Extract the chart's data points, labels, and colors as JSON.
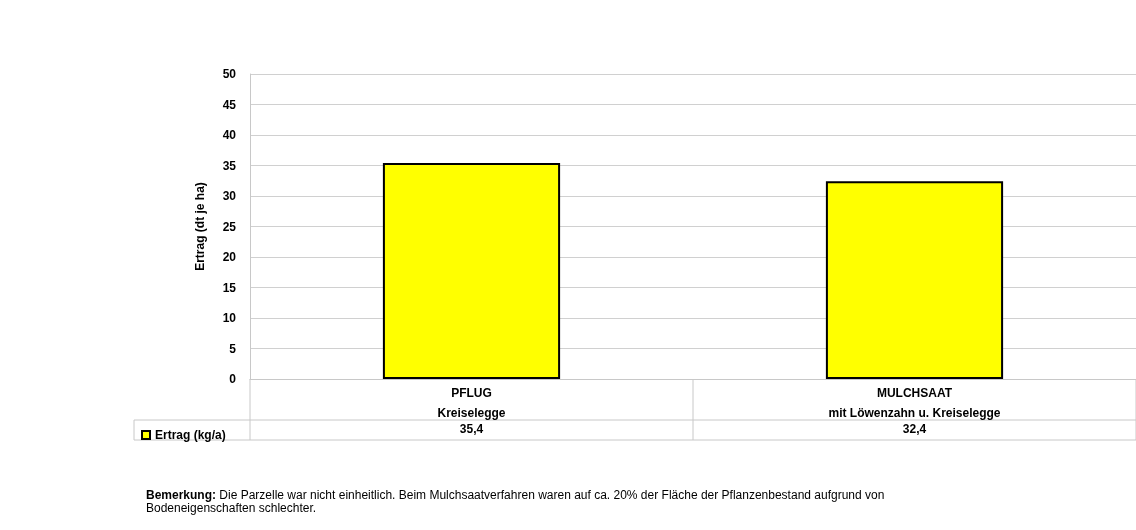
{
  "chart_data": {
    "type": "bar",
    "ylabel": "Ertrag (dt je ha)",
    "categories": [
      "PFLUG\nKreiselegge",
      "MULCHSAAT\nmit Löwenzahn u. Kreiselegge"
    ],
    "series": [
      {
        "name": "Ertrag (kg/a)",
        "color": "#ffff00",
        "values": [
          35.4,
          32.4
        ],
        "value_labels": [
          "35,4",
          "32,4"
        ]
      }
    ],
    "ylim": [
      0,
      50
    ],
    "yticks": [
      0,
      5,
      10,
      15,
      20,
      25,
      30,
      35,
      40,
      45,
      50
    ],
    "grid": "y",
    "legend": "bottom left",
    "annotations": [
      "Bemerkung: Die Parzelle war nicht einheitlich. Beim Mulchsaatverfahren waren auf ca. 20% der Fläche der Pflanzenbestand aufgrund von Bodeneigenschaften schlechter."
    ]
  }
}
